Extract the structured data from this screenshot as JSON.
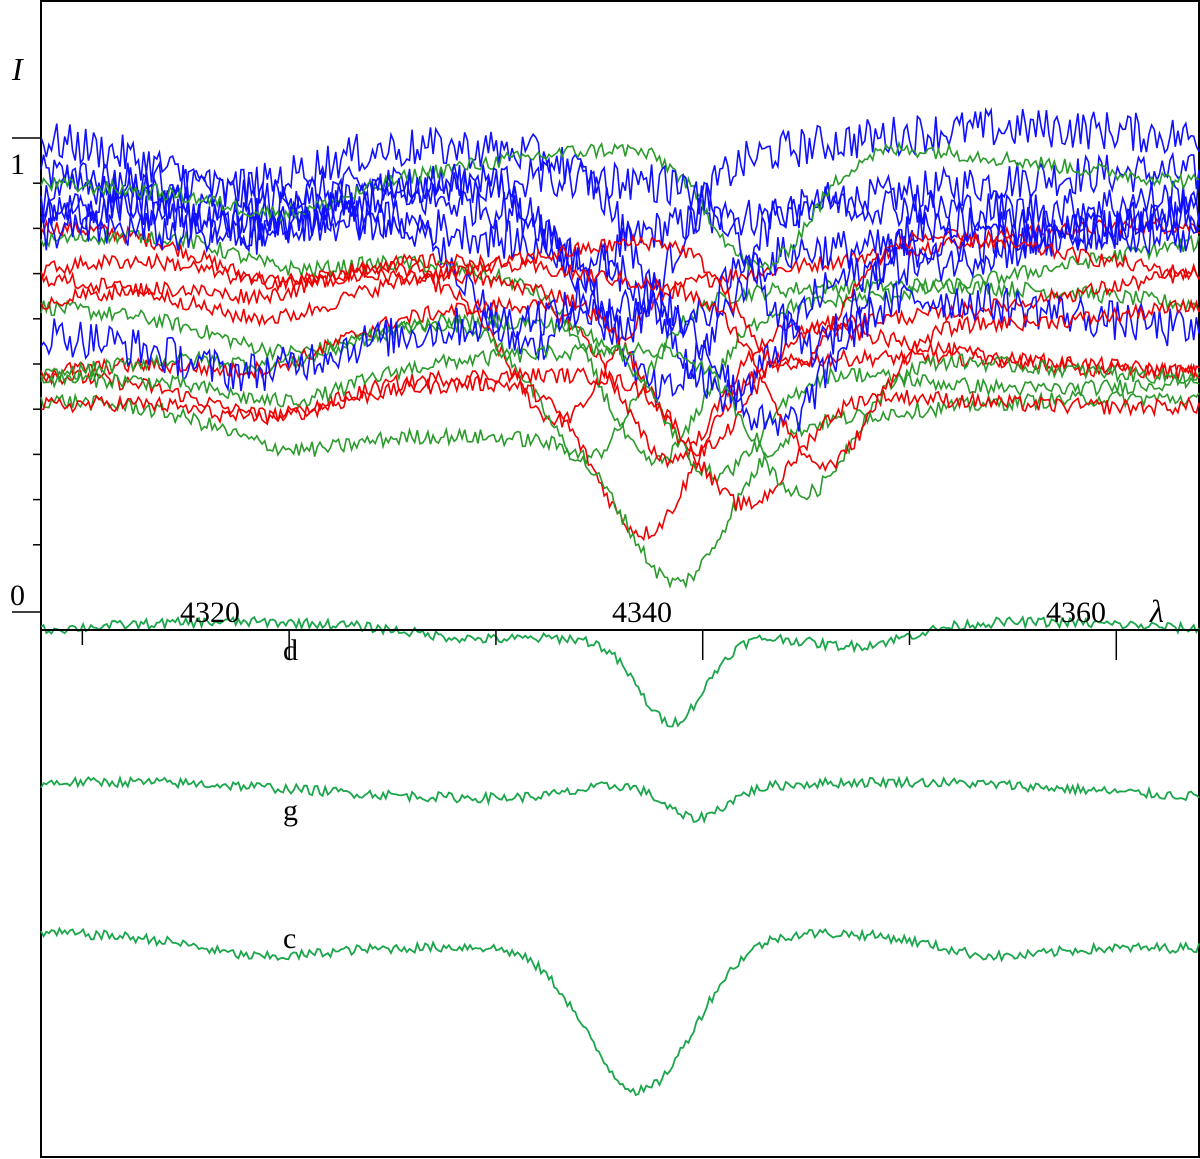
{
  "chart_data": {
    "type": "line",
    "ylabel": "I",
    "xlabel": "λ",
    "y_ticks": [
      {
        "value": 0,
        "label": "0"
      },
      {
        "value": 1,
        "label": "1"
      }
    ],
    "y_minor_tick_values": [
      0.1,
      0.2,
      0.3,
      0.4,
      0.5,
      0.6,
      0.7,
      0.8,
      0.9
    ],
    "x_ticks": [
      {
        "value": 4320,
        "label": "4320"
      },
      {
        "value": 4340,
        "label": "4340"
      },
      {
        "value": 4360,
        "label": "4360"
      }
    ],
    "x_minor_tick_values": [
      4310,
      4330,
      4350
    ],
    "xlim": [
      4308,
      4364
    ],
    "ylim": [
      0,
      1.12
    ],
    "observed_spectra": {
      "profile_centers": [
        4331.5,
        4333,
        4334.5,
        4336,
        4337.2,
        4337.6,
        4338,
        4338.4,
        4338.8,
        4339.2,
        4339.8,
        4340.5,
        4341.2,
        4342,
        4342.8,
        4343.5,
        4344.2,
        4344.8,
        4345.2,
        4345.8
      ],
      "continuum_levels": [
        0.86,
        0.74,
        0.63,
        0.96,
        0.48,
        0.71,
        0.82,
        0.56,
        0.38,
        0.91,
        0.67,
        0.52,
        0.78,
        0.44,
        0.94,
        0.6,
        0.73,
        0.5,
        0.85,
        0.66
      ],
      "line_depths": [
        0.26,
        0.3,
        0.33,
        0.35,
        0.36,
        0.36,
        0.35,
        0.34,
        0.33,
        0.32,
        0.3,
        0.28,
        0.27,
        0.27,
        0.28,
        0.3,
        0.31,
        0.32,
        0.33,
        0.34
      ],
      "colors": [
        "#1010ff",
        "#ee0000",
        "#2a9a2a"
      ]
    },
    "components": [
      {
        "name": "d",
        "baseline": 0,
        "line_center": 4338.5,
        "depth": 0.85,
        "width": 1.6,
        "secondary": [
          {
            "center": 4328.5,
            "depth": 0.06
          },
          {
            "center": 4347.5,
            "depth": 0.18
          }
        ]
      },
      {
        "name": "g",
        "baseline": 0,
        "line_center": 4339.5,
        "depth": 0.35,
        "width": 1.5,
        "secondary": [
          {
            "center": 4337,
            "depth": -0.12
          }
        ]
      },
      {
        "name": "c",
        "baseline": 0,
        "line_center": 4337,
        "depth": 1.55,
        "width": 2.6,
        "secondary": [
          {
            "center": 4318.5,
            "depth": 0.12
          },
          {
            "center": 4354,
            "depth": 0.14
          }
        ]
      }
    ]
  },
  "colors": {
    "blue": "#1010ff",
    "red": "#ee0000",
    "green": "#1aa64a",
    "axis": "#000000"
  }
}
